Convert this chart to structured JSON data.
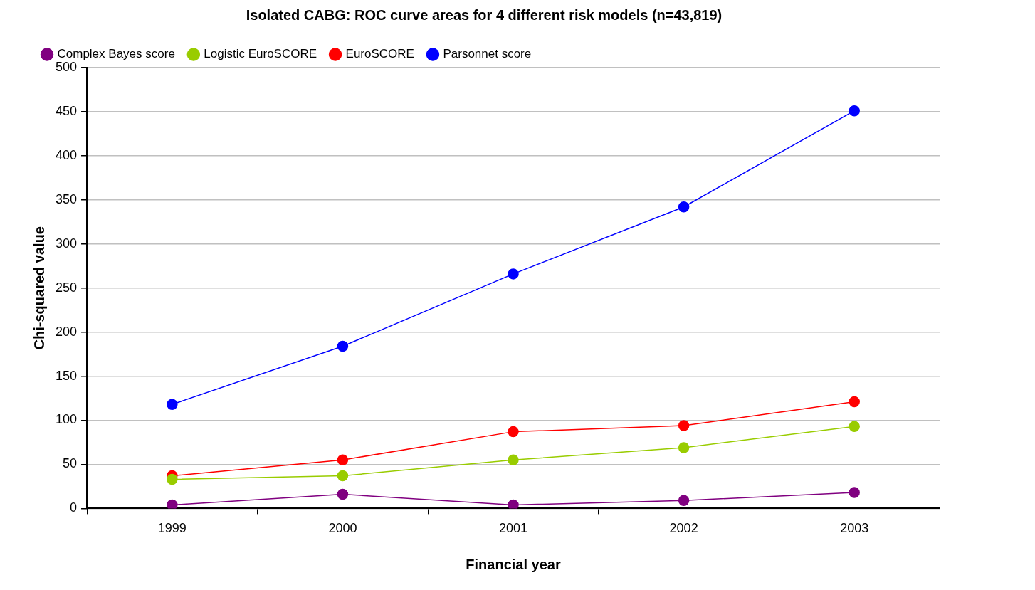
{
  "chart_data": {
    "type": "line",
    "title": "Isolated CABG: ROC curve areas for 4 different risk models (n=43,819)",
    "xlabel": "Financial year",
    "ylabel": "Chi-squared value",
    "categories": [
      "1999",
      "2000",
      "2001",
      "2002",
      "2003"
    ],
    "series": [
      {
        "name": "Parsonnet score",
        "color": "#0000ff",
        "values": [
          118,
          184,
          266,
          342,
          451
        ]
      },
      {
        "name": "EuroSCORE",
        "color": "#ff0000",
        "values": [
          37,
          55,
          87,
          94,
          121
        ]
      },
      {
        "name": "Logistic EuroSCORE",
        "color": "#99cc00",
        "values": [
          33,
          37,
          55,
          69,
          93
        ]
      },
      {
        "name": "Complex Bayes score",
        "color": "#800080",
        "values": [
          4,
          16,
          4,
          9,
          18
        ]
      }
    ],
    "ylim": [
      0,
      500
    ],
    "yticks": [
      0,
      50,
      100,
      150,
      200,
      250,
      300,
      350,
      400,
      450,
      500
    ],
    "grid": "y",
    "legend": "top left",
    "marker": "circle",
    "line_style": "solid"
  }
}
